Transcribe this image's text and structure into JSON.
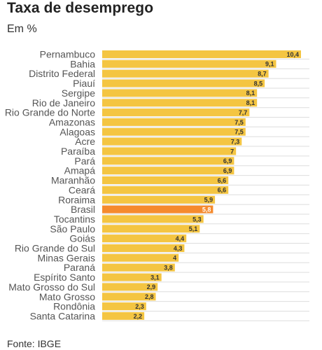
{
  "title": "Taxa de desemprego",
  "subtitle": "Em %",
  "source": "Fonte: IBGE",
  "colors": {
    "bar": "#f4c542",
    "highlight": "#f58a2e",
    "highlight_text": "#ffffff",
    "label": "#555555",
    "grid": "#dddddd"
  },
  "chart_data": {
    "type": "bar",
    "orientation": "horizontal",
    "categories": [
      "Pernambuco",
      "Bahia",
      "Distrito Federal",
      "Piauí",
      "Sergipe",
      "Rio de Janeiro",
      "Rio Grande do Norte",
      "Amazonas",
      "Alagoas",
      "Acre",
      "Paraíba",
      "Pará",
      "Amapá",
      "Maranhão",
      "Ceará",
      "Roraima",
      "Brasil",
      "Tocantins",
      "São Paulo",
      "Goiás",
      "Rio Grande do Sul",
      "Minas Gerais",
      "Paraná",
      "Espírito Santo",
      "Mato Grosso do Sul",
      "Mato Grosso",
      "Rondônia",
      "Santa Catarina"
    ],
    "values": [
      10.4,
      9.1,
      8.7,
      8.5,
      8.1,
      8.1,
      7.7,
      7.5,
      7.5,
      7.3,
      7,
      6.9,
      6.9,
      6.6,
      6.6,
      5.9,
      5.8,
      5.3,
      5.1,
      4.4,
      4.3,
      4,
      3.8,
      3.1,
      2.9,
      2.8,
      2.3,
      2.2
    ],
    "value_labels": [
      "10,4",
      "9,1",
      "8,7",
      "8,5",
      "8,1",
      "8,1",
      "7,7",
      "7,5",
      "7,5",
      "7,3",
      "7",
      "6,9",
      "6,9",
      "6,6",
      "6,6",
      "5,9",
      "5,8",
      "5,3",
      "5,1",
      "4,4",
      "4,3",
      "4",
      "3,8",
      "3,1",
      "2,9",
      "2,8",
      "2,3",
      "2,2"
    ],
    "highlight": "Brasil",
    "xlim": [
      0,
      10.4
    ],
    "grid": "horizontal"
  }
}
